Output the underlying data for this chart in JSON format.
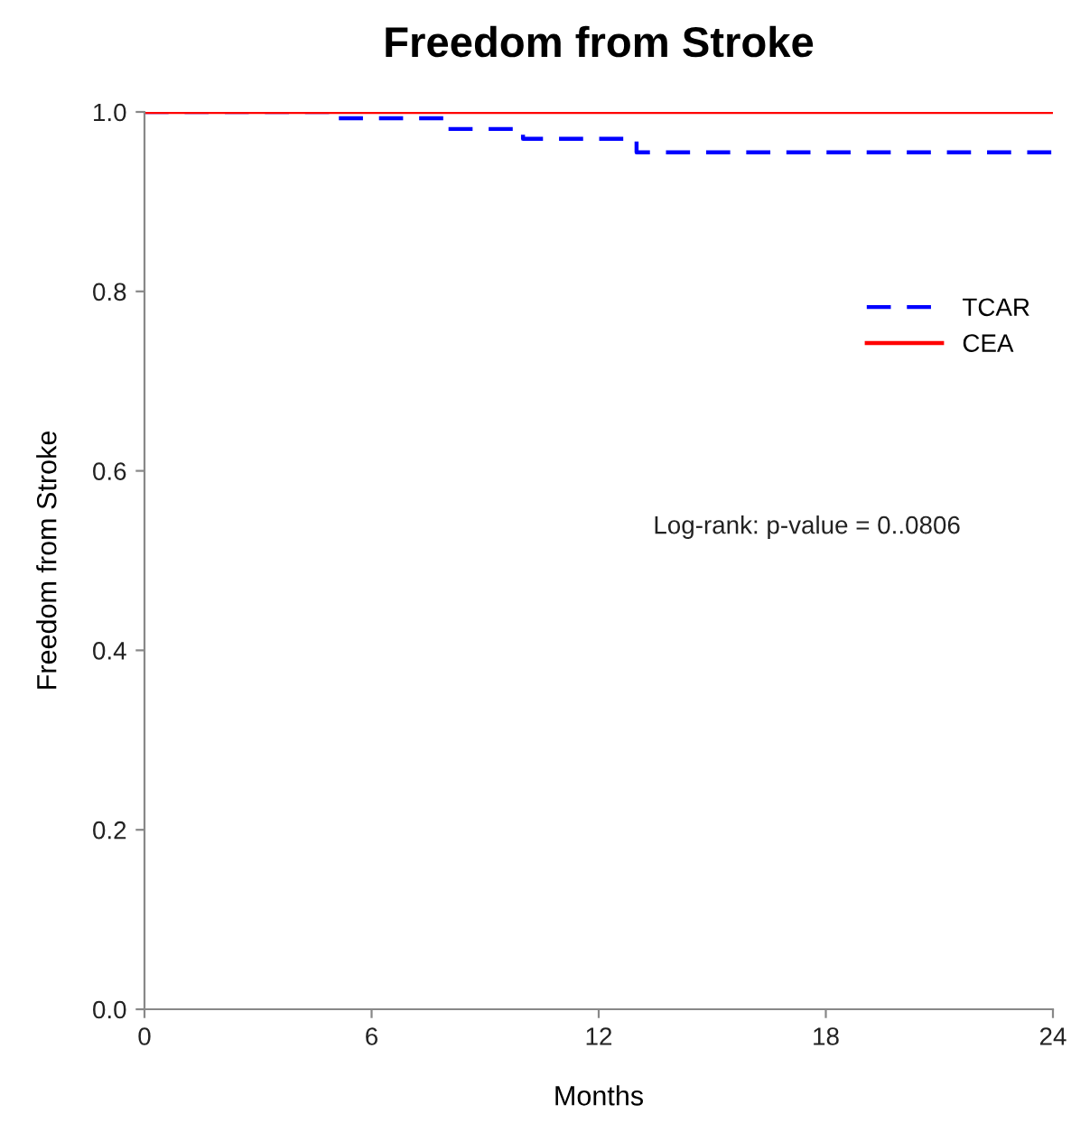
{
  "chart_data": {
    "type": "step",
    "title": "Freedom from Stroke",
    "xlabel": "Months",
    "ylabel": "Freedom from Stroke",
    "series": [
      {
        "name": "TCAR",
        "color": "#0000ff",
        "line_style": "dashed",
        "x": [
          0,
          5,
          8,
          10,
          13,
          24
        ],
        "values": [
          1.0,
          0.993,
          0.981,
          0.97,
          0.955,
          0.955
        ]
      },
      {
        "name": "CEA",
        "color": "#ff0000",
        "line_style": "solid",
        "x": [
          0,
          24
        ],
        "values": [
          1.0,
          1.0
        ]
      }
    ],
    "xlim": [
      0,
      24
    ],
    "xticks": [
      0,
      6,
      12,
      18,
      24
    ],
    "ylim": [
      0,
      1.0
    ],
    "yticks": [
      {
        "value": 0,
        "label": "0.0"
      },
      {
        "value": 0.2,
        "label": "0.2"
      },
      {
        "value": 0.4,
        "label": "0.4"
      },
      {
        "value": 0.6,
        "label": "0.6"
      },
      {
        "value": 0.8,
        "label": "0.8"
      },
      {
        "value": 1.0,
        "label": "1.0"
      }
    ],
    "annotations": [
      "Log-rank: p-value = 0..0806"
    ],
    "legend": "right",
    "grid": false,
    "marker": "none"
  }
}
